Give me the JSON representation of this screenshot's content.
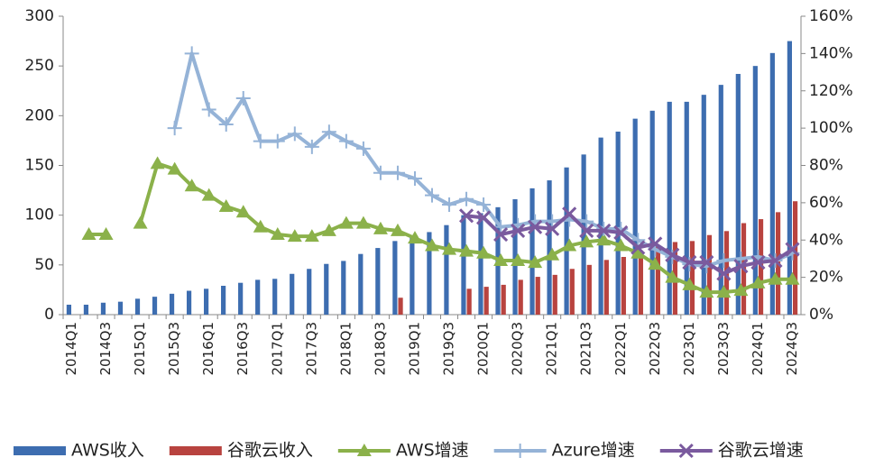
{
  "chart_data": {
    "type": "bar",
    "categories": [
      "2014Q1",
      null,
      "2014Q3",
      null,
      "2015Q1",
      null,
      "2015Q3",
      null,
      "2016Q1",
      null,
      "2016Q3",
      null,
      "2017Q1",
      null,
      "2017Q3",
      null,
      "2018Q1",
      null,
      "2018Q3",
      null,
      "2019Q1",
      null,
      "2019Q3",
      null,
      "2020Q1",
      null,
      "2020Q3",
      null,
      "2021Q1",
      null,
      "2021Q3",
      null,
      "2022Q1",
      null,
      "2022Q3",
      null,
      "2023Q1",
      null,
      "2023Q3",
      null,
      "2024Q1",
      null,
      "2024Q3"
    ],
    "ylim": [
      0,
      300
    ],
    "yticks": [
      0,
      50,
      100,
      150,
      200,
      250,
      300
    ],
    "y2lim": [
      0,
      160
    ],
    "y2ticks": [
      {
        "value": 0,
        "label": "0%"
      },
      {
        "value": 20,
        "label": "20%"
      },
      {
        "value": 40,
        "label": "40%"
      },
      {
        "value": 60,
        "label": "60%"
      },
      {
        "value": 80,
        "label": "80%"
      },
      {
        "value": 100,
        "label": "100%"
      },
      {
        "value": 120,
        "label": "120%"
      },
      {
        "value": 140,
        "label": "140%"
      },
      {
        "value": 160,
        "label": "160%"
      }
    ],
    "legend": "bottom",
    "series": [
      {
        "name": "AWS收入",
        "type": "bar",
        "color": "#3d6db0",
        "values": [
          10,
          10,
          12,
          13,
          16,
          18,
          21,
          24,
          26,
          29,
          32,
          35,
          36,
          41,
          46,
          51,
          54,
          61,
          67,
          74,
          77,
          83,
          90,
          100,
          102,
          108,
          116,
          127,
          135,
          148,
          161,
          178,
          184,
          197,
          205,
          214,
          214,
          221,
          231,
          242,
          250,
          263,
          275
        ]
      },
      {
        "name": "谷歌云收入",
        "type": "bar",
        "color": "#b8433f",
        "values": [
          null,
          null,
          null,
          null,
          null,
          null,
          null,
          null,
          null,
          null,
          null,
          null,
          null,
          null,
          null,
          null,
          null,
          null,
          null,
          17,
          null,
          null,
          null,
          26,
          28,
          30,
          35,
          38,
          40,
          46,
          50,
          55,
          58,
          62,
          69,
          73,
          74,
          80,
          84,
          92,
          96,
          103,
          114
        ]
      },
      {
        "name": "AWS增速",
        "type": "line",
        "marker": "triangle",
        "axis": "y2",
        "color": "#8bb14a",
        "values": [
          null,
          43,
          43,
          null,
          49,
          81,
          78,
          69,
          64,
          58,
          55,
          47,
          43,
          42,
          42,
          45,
          49,
          49,
          46,
          45,
          41,
          37,
          35,
          34,
          33,
          29,
          29,
          28,
          32,
          37,
          39,
          40,
          37,
          33,
          27,
          20,
          16,
          12,
          12,
          13,
          17,
          19,
          19
        ]
      },
      {
        "name": "Azure增速",
        "type": "line",
        "marker": "plus",
        "axis": "y2",
        "color": "#95b3d7",
        "values": [
          null,
          null,
          null,
          null,
          null,
          null,
          100,
          140,
          110,
          102,
          116,
          93,
          93,
          97,
          90,
          98,
          93,
          89,
          76,
          76,
          73,
          64,
          59,
          62,
          59,
          47,
          48,
          50,
          50,
          51,
          50,
          46,
          46,
          40,
          35,
          31,
          27,
          26,
          29,
          30,
          31,
          29,
          33
        ]
      },
      {
        "name": "谷歌云增速",
        "type": "line",
        "marker": "x",
        "axis": "y2",
        "color": "#7a5a9e",
        "values": [
          null,
          null,
          null,
          null,
          null,
          null,
          null,
          null,
          null,
          null,
          null,
          null,
          null,
          null,
          null,
          null,
          null,
          null,
          null,
          null,
          null,
          null,
          null,
          53,
          52,
          43,
          45,
          47,
          46,
          54,
          45,
          45,
          44,
          36,
          38,
          32,
          28,
          28,
          22,
          26,
          28,
          29,
          35
        ]
      }
    ]
  }
}
